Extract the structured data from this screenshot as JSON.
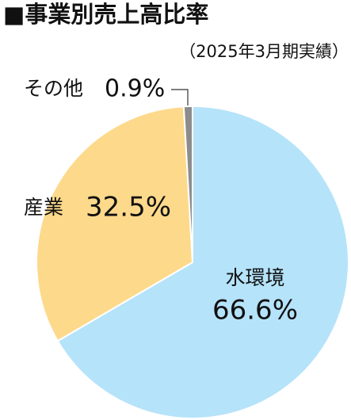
{
  "chart_data": {
    "type": "pie",
    "title": "■事業別売上高比率",
    "subtitle": "（2025年3月期実績）",
    "categories": [
      "水環境",
      "産業",
      "その他"
    ],
    "values": [
      66.6,
      32.5,
      0.9
    ],
    "value_labels": [
      "66.6%",
      "32.5%",
      "0.9%"
    ],
    "colors": [
      "#b5e3fa",
      "#fdd98b",
      "#8c8c8c"
    ]
  }
}
